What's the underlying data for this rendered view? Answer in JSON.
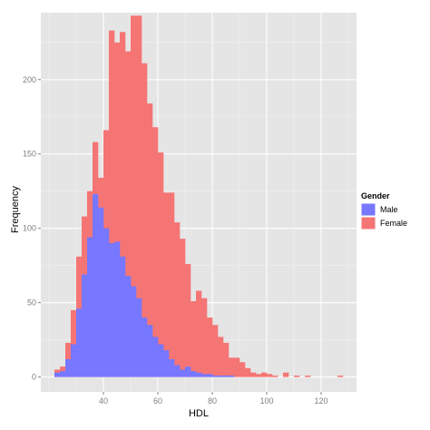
{
  "chart_data": {
    "type": "bar",
    "subtype": "histogram",
    "xlabel": "HDL",
    "ylabel": "Frequency",
    "x_ticks": [
      "40",
      "60",
      "80",
      "100",
      "120"
    ],
    "y_ticks": [
      "0",
      "50",
      "100",
      "150",
      "200"
    ],
    "xlim": [
      17,
      133
    ],
    "ylim": [
      -10,
      245
    ],
    "grid": true,
    "bin_width": 2,
    "bin_start": 22,
    "legend": {
      "title": "Gender",
      "position": "right"
    },
    "series": [
      {
        "name": "Male",
        "color": "#7777ff",
        "values": [
          3,
          4,
          12,
          22,
          46,
          69,
          94,
          123,
          114,
          100,
          90,
          91,
          81,
          68,
          61,
          53,
          40,
          35,
          27,
          22,
          18,
          12,
          8,
          5,
          7,
          4,
          3,
          2,
          2,
          1,
          1,
          1,
          1,
          0,
          0,
          0,
          0,
          0,
          0,
          0,
          0,
          0,
          0,
          0,
          0,
          0,
          0,
          0,
          0,
          0,
          0,
          0,
          0
        ]
      },
      {
        "name": "Female",
        "color": "#f57575",
        "values": [
          5,
          7,
          23,
          45,
          81,
          108,
          125,
          158,
          134,
          166,
          233,
          225,
          232,
          219,
          243,
          243,
          211,
          184,
          168,
          151,
          124,
          124,
          104,
          93,
          76,
          51,
          58,
          53,
          40,
          35,
          27,
          23,
          13,
          13,
          10,
          6,
          3,
          2,
          3,
          2,
          1,
          0,
          3,
          0,
          1,
          0,
          1,
          0,
          0,
          0,
          0,
          0,
          1
        ]
      }
    ]
  },
  "colors": {
    "panel_background": "#e5e5e5",
    "grid_major": "#ffffff",
    "grid_minor": "#f2f2f2"
  }
}
